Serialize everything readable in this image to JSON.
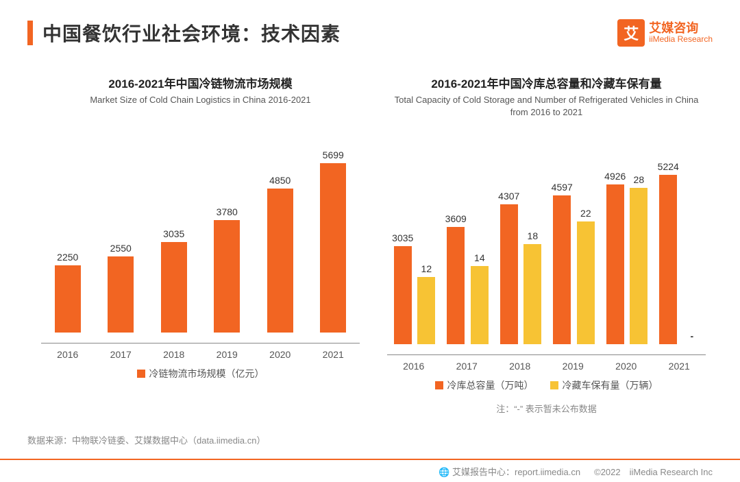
{
  "header": {
    "title": "中国餐饮行业社会环境：技术因素",
    "logo_cn": "艾媒咨询",
    "logo_en": "iiMedia Research",
    "logo_glyph": "艾"
  },
  "chart_left": {
    "type": "bar",
    "title_cn": "2016-2021年中国冷链物流市场规模",
    "title_en": "Market Size of Cold Chain Logistics in China 2016-2021",
    "categories": [
      "2016",
      "2017",
      "2018",
      "2019",
      "2020",
      "2021"
    ],
    "values": [
      2250,
      2550,
      3035,
      3780,
      4850,
      5699
    ],
    "ymax": 6000,
    "bar_color": "#f26522",
    "legend_label": "冷链物流市场规模（亿元）",
    "label_fontsize": 14,
    "title_fontsize_cn": 17,
    "title_fontsize_en": 13,
    "axis_color": "#888888",
    "background_color": "#ffffff"
  },
  "chart_right": {
    "type": "grouped-bar",
    "title_cn": "2016-2021年中国冷库总容量和冷藏车保有量",
    "title_en": "Total Capacity of Cold Storage and Number of Refrigerated Vehicles in China from 2016 to 2021",
    "categories": [
      "2016",
      "2017",
      "2018",
      "2019",
      "2020",
      "2021"
    ],
    "series1": {
      "label": "冷库总容量（万吨）",
      "color": "#f26522",
      "values": [
        3035,
        3609,
        4307,
        4597,
        4926,
        5224
      ]
    },
    "series2": {
      "label": "冷藏车保有量（万辆）",
      "color": "#f7c334",
      "values": [
        12,
        14,
        18,
        22,
        28,
        null
      ]
    },
    "ymax1": 5500,
    "ymax2": 32,
    "note": "注：“-” 表示暂未公布数据",
    "missing_marker": "-",
    "label_fontsize": 14,
    "axis_color": "#888888"
  },
  "source_line": "数据来源：中物联冷链委、艾媒数据中心（data.iimedia.cn）",
  "footer": {
    "site": "艾媒报告中心：report.iimedia.cn",
    "copyright": "©2022　iiMedia Research Inc"
  },
  "colors": {
    "accent": "#f26522",
    "secondary": "#f7c334",
    "text": "#333333",
    "muted": "#888888",
    "background": "#ffffff"
  }
}
